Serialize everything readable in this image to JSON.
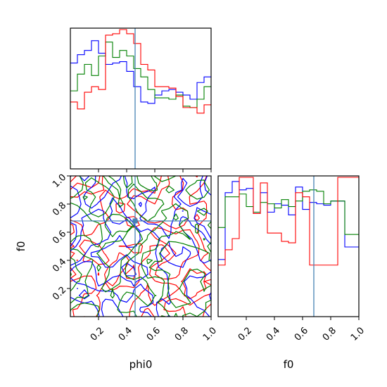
{
  "chart_data": {
    "type": "corner",
    "parameters": [
      "phi0",
      "f0"
    ],
    "truth": {
      "phi0": 0.46,
      "f0": 0.68
    },
    "truth_color": "#4682b4",
    "series": [
      {
        "color": "#0000ff"
      },
      {
        "color": "#008000"
      },
      {
        "color": "#ff0000"
      }
    ],
    "ticks": [
      0.2,
      0.4,
      0.6,
      0.8,
      1.0
    ],
    "tick_labels": [
      "0.2",
      "0.4",
      "0.6",
      "0.8",
      "1.0"
    ],
    "range": [
      0,
      1
    ],
    "hist_phi0": {
      "bins": 20,
      "blue": [
        0.76,
        0.82,
        0.85,
        0.92,
        0.83,
        0.75,
        0.76,
        0.77,
        0.7,
        0.59,
        0.48,
        0.47,
        0.53,
        0.56,
        0.57,
        0.55,
        0.53,
        0.5,
        0.62,
        0.66
      ],
      "green": [
        0.56,
        0.68,
        0.75,
        0.67,
        0.81,
        0.91,
        0.8,
        0.85,
        0.81,
        0.72,
        0.66,
        0.57,
        0.51,
        0.51,
        0.5,
        0.53,
        0.45,
        0.44,
        0.5,
        0.59
      ],
      "red": [
        0.48,
        0.43,
        0.55,
        0.59,
        0.57,
        0.96,
        0.97,
        1.0,
        0.97,
        0.9,
        0.75,
        0.71,
        0.59,
        0.59,
        0.58,
        0.52,
        0.44,
        0.44,
        0.4,
        0.46
      ]
    },
    "hist_f0": {
      "bins": 20,
      "blue": [
        0.41,
        0.89,
        0.97,
        0.91,
        0.92,
        0.74,
        0.89,
        0.75,
        0.81,
        0.8,
        0.73,
        0.93,
        0.77,
        0.82,
        0.81,
        0.8,
        0.83,
        0.83,
        0.5,
        0.5
      ],
      "green": [
        0.64,
        0.86,
        0.86,
        0.88,
        0.79,
        0.75,
        0.82,
        0.81,
        0.78,
        0.84,
        0.79,
        0.83,
        0.9,
        0.91,
        0.9,
        0.81,
        0.83,
        0.83,
        0.59,
        0.59
      ],
      "red": [
        0.37,
        0.48,
        0.56,
        1.0,
        1.0,
        0.74,
        0.96,
        0.6,
        0.6,
        0.54,
        0.53,
        0.89,
        0.86,
        0.37,
        0.37,
        0.37,
        0.37,
        1.0,
        1.0,
        1.0
      ]
    },
    "contour_seeds": [
      13,
      29,
      47
    ]
  }
}
